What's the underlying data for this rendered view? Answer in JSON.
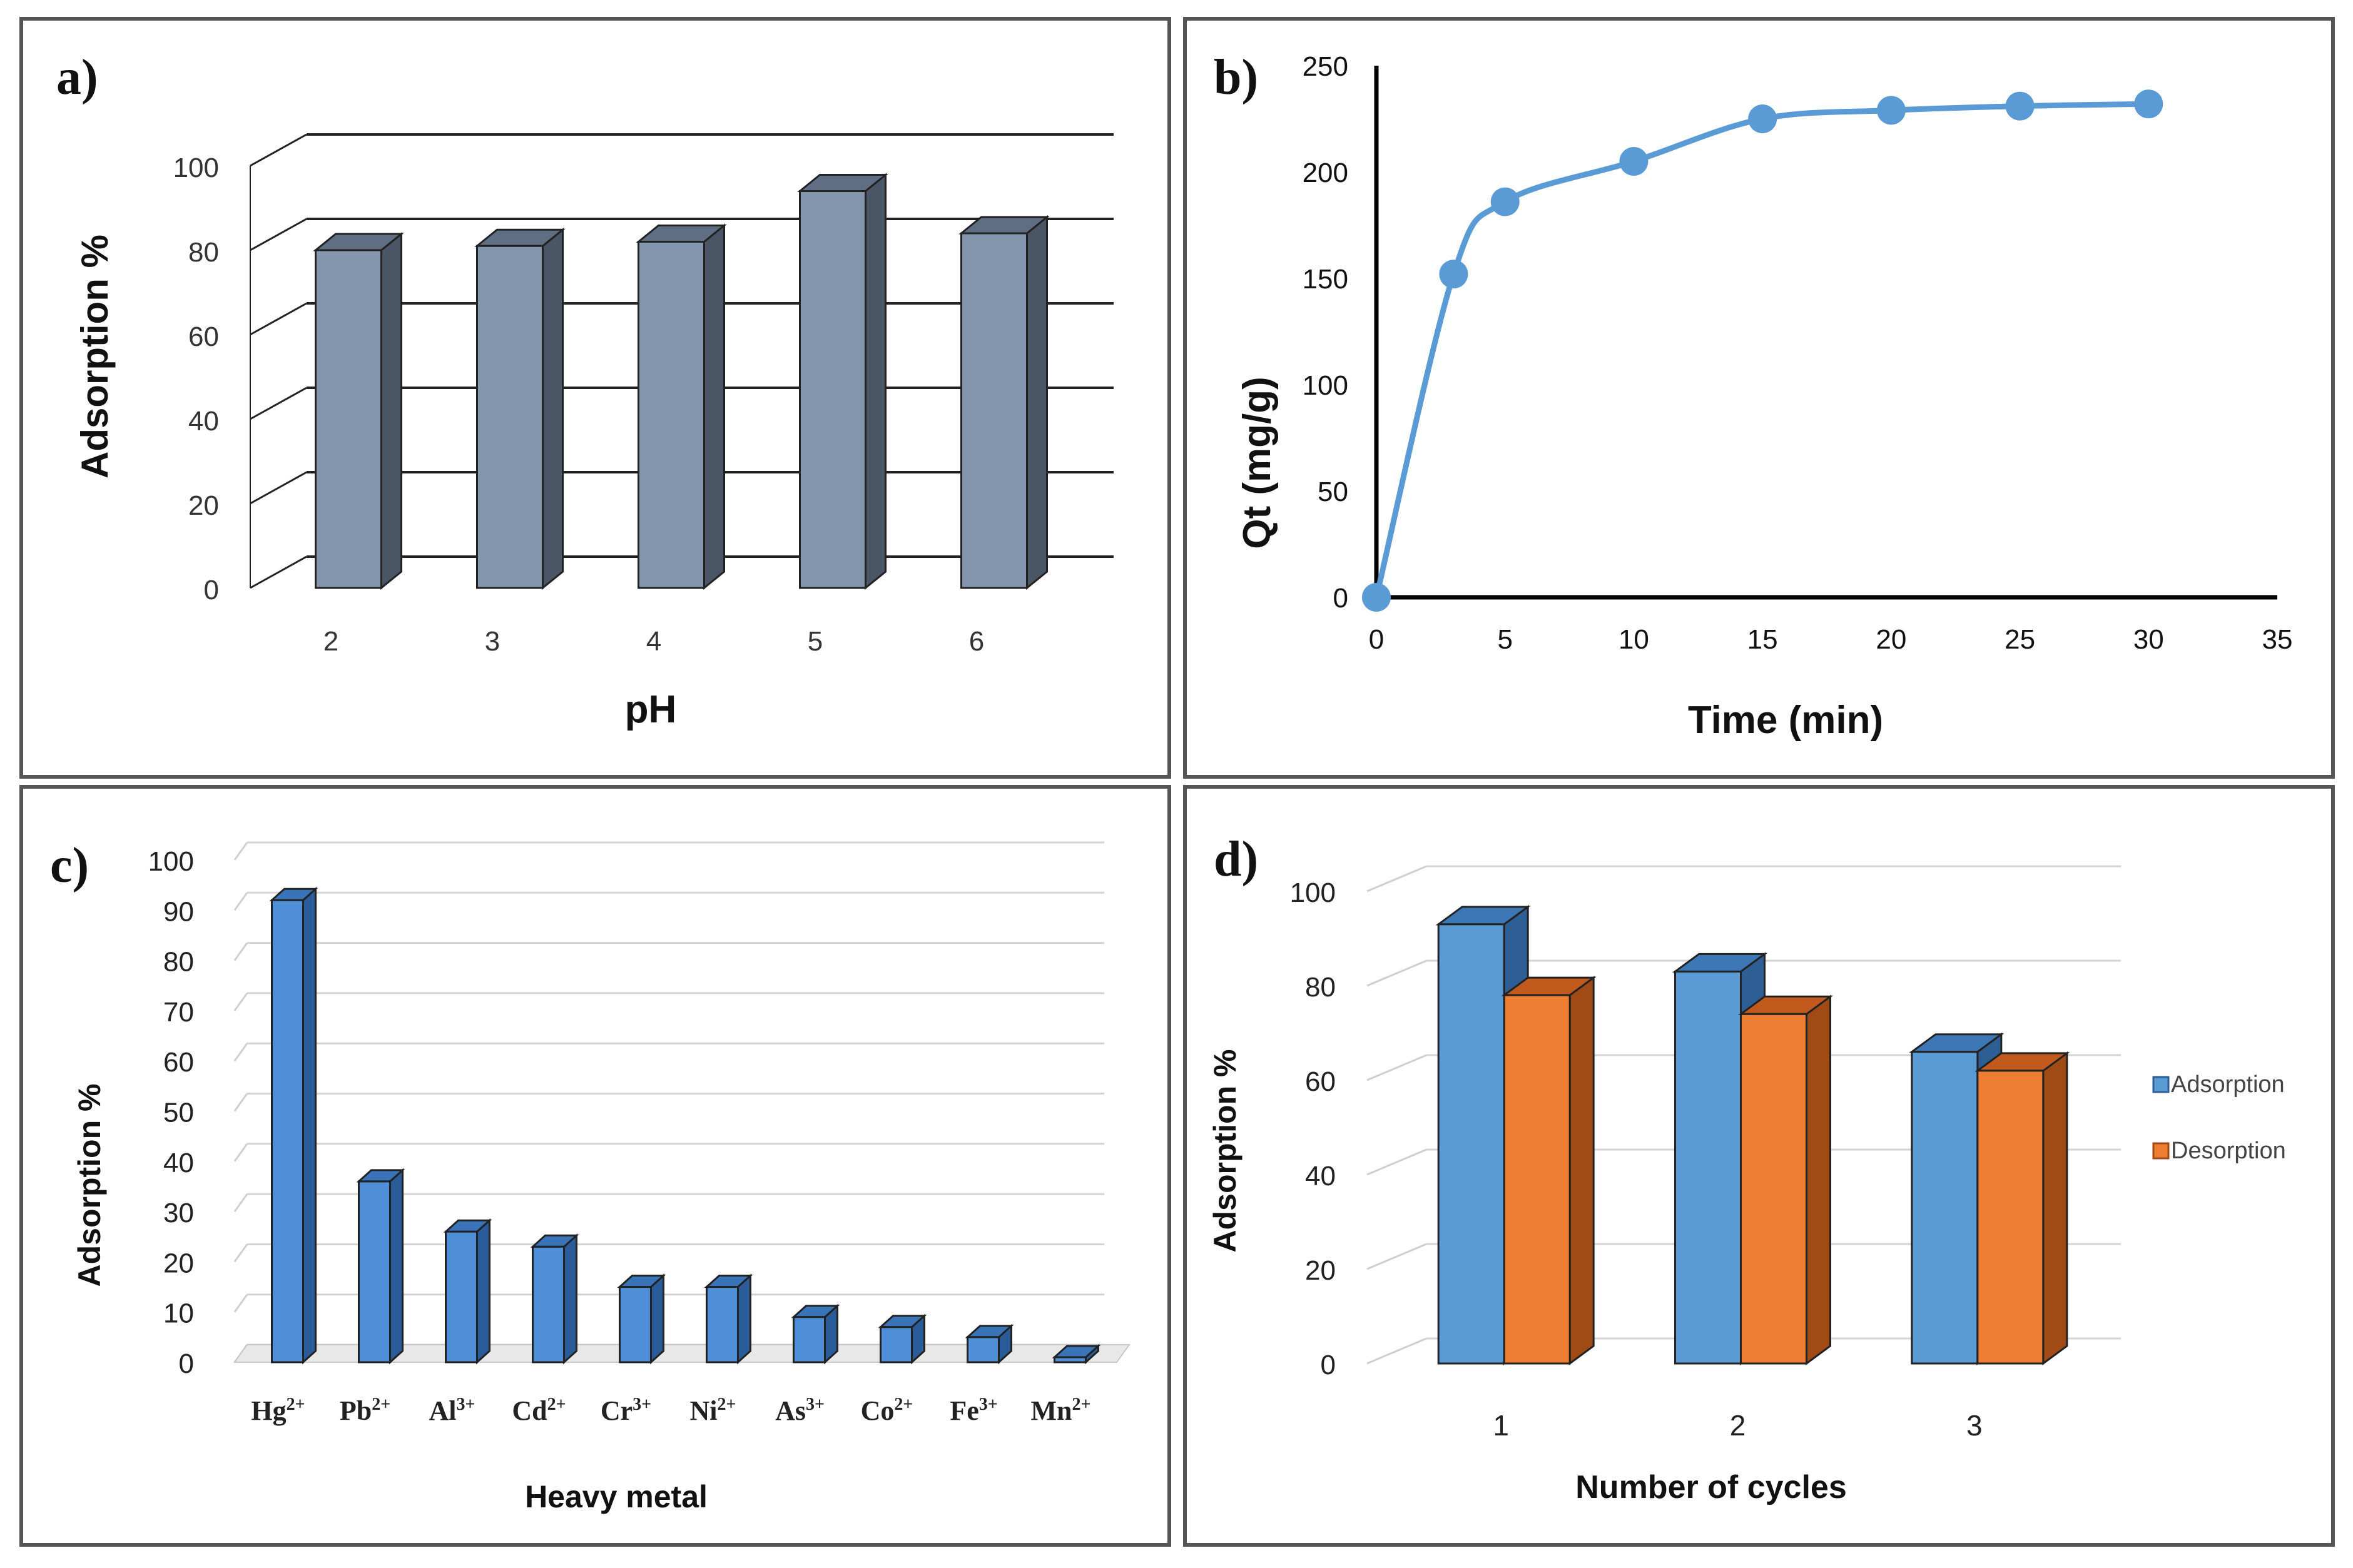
{
  "chart_data": [
    {
      "panel": "a)",
      "type": "bar",
      "style": "3d",
      "title": "",
      "xlabel": "pH",
      "ylabel": "Adsorption %",
      "categories": [
        "2",
        "3",
        "4",
        "5",
        "6"
      ],
      "values": [
        80,
        81,
        82,
        94,
        84
      ],
      "ylim": [
        0,
        100
      ],
      "yticks": [
        "0",
        "20",
        "40",
        "60",
        "80",
        "100"
      ],
      "colors": {
        "front": "#8496ae",
        "side": "#4a5566",
        "top": "#5f6e82"
      }
    },
    {
      "panel": "b)",
      "type": "line",
      "title": "",
      "xlabel": "Time (min)",
      "ylabel": "Qt (mg/g)",
      "x": [
        0,
        3,
        5,
        10,
        15,
        20,
        25,
        30
      ],
      "y": [
        0,
        152,
        186,
        205,
        225,
        229,
        231,
        232
      ],
      "xlim": [
        0,
        35
      ],
      "ylim": [
        0,
        250
      ],
      "xticks": [
        "0",
        "5",
        "10",
        "15",
        "20",
        "25",
        "30",
        "35"
      ],
      "yticks": [
        "0",
        "50",
        "100",
        "150",
        "200",
        "250"
      ],
      "colors": {
        "line": "#5b9bd5"
      }
    },
    {
      "panel": "c)",
      "type": "bar",
      "style": "3d",
      "title": "",
      "xlabel": "Heavy metal",
      "ylabel": "Adsorption %",
      "categories": [
        {
          "base": "Hg",
          "sup": "2+"
        },
        {
          "base": "Pb",
          "sup": "2+"
        },
        {
          "base": "Al",
          "sup": "3+"
        },
        {
          "base": "Cd",
          "sup": "2+"
        },
        {
          "base": "Cr",
          "sup": "3+"
        },
        {
          "base": "Ni",
          "sup": "2+"
        },
        {
          "base": "As",
          "sup": "3+"
        },
        {
          "base": "Co",
          "sup": "2+"
        },
        {
          "base": "Fe",
          "sup": "3+"
        },
        {
          "base": "Mn",
          "sup": "2+"
        }
      ],
      "values": [
        92,
        36,
        26,
        23,
        15,
        15,
        9,
        7,
        5,
        1
      ],
      "ylim": [
        0,
        100
      ],
      "yticks": [
        "0",
        "10",
        "20",
        "30",
        "40",
        "50",
        "60",
        "70",
        "80",
        "90",
        "100"
      ],
      "colors": {
        "front": "#4f8fd8",
        "side": "#2a5c9a",
        "top": "#3a74b8"
      }
    },
    {
      "panel": "d)",
      "type": "bar",
      "style": "3d",
      "title": "",
      "xlabel": "Number of cycles",
      "ylabel": "Adsorption %",
      "categories": [
        "1",
        "2",
        "3"
      ],
      "series": [
        {
          "name": "Adsorption",
          "values": [
            93,
            83,
            66
          ],
          "front": "#5b9bd5",
          "side": "#2e5f94",
          "top": "#3d77b5"
        },
        {
          "name": "Desorption",
          "values": [
            78,
            74,
            62
          ],
          "front": "#ed7d31",
          "side": "#a04b16",
          "top": "#c2591d"
        }
      ],
      "ylim": [
        0,
        100
      ],
      "yticks": [
        "0",
        "20",
        "40",
        "60",
        "80",
        "100"
      ],
      "legend": "right"
    }
  ]
}
